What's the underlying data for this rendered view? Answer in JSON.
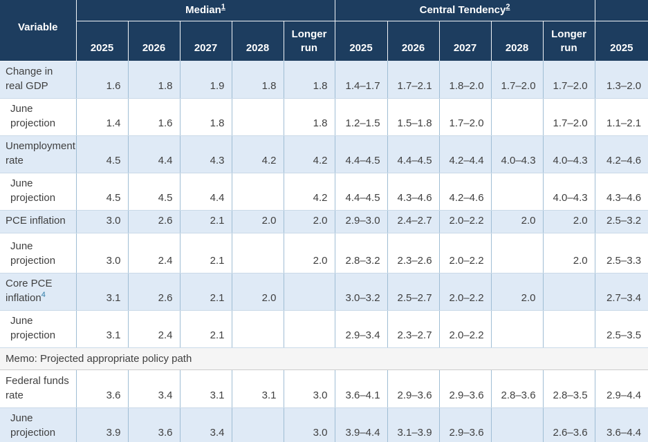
{
  "colors": {
    "header_bg": "#1d3d5f",
    "header_text": "#ffffff",
    "stripe_blue": "#dfeaf6",
    "memo_bg": "#f5f5f5",
    "body_text": "#3f3f3f",
    "footnote_link": "#2e7ca8"
  },
  "header": {
    "variable_label": "Variable",
    "median": {
      "label": "Median",
      "footnote": "1"
    },
    "central_tendency": {
      "label": "Central Tendency",
      "footnote": "2"
    },
    "range_label": "",
    "years": [
      "2025",
      "2026",
      "2027",
      "2028",
      "Longer run",
      "2025",
      "2026",
      "2027",
      "2028",
      "Longer run",
      "2025"
    ]
  },
  "rows": [
    {
      "label": "Change in real GDP",
      "sup": "",
      "indent": false,
      "values": [
        "1.6",
        "1.8",
        "1.9",
        "1.8",
        "1.8",
        "1.4–1.7",
        "1.7–2.1",
        "1.8–2.0",
        "1.7–2.0",
        "1.7–2.0",
        "1.3–2.0"
      ]
    },
    {
      "label": "June projection",
      "sup": "",
      "indent": true,
      "values": [
        "1.4",
        "1.6",
        "1.8",
        "",
        "1.8",
        "1.2–1.5",
        "1.5–1.8",
        "1.7–2.0",
        "",
        "1.7–2.0",
        "1.1–2.1"
      ]
    },
    {
      "label": "Unemployment rate",
      "sup": "",
      "indent": false,
      "values": [
        "4.5",
        "4.4",
        "4.3",
        "4.2",
        "4.2",
        "4.4–4.5",
        "4.4–4.5",
        "4.2–4.4",
        "4.0–4.3",
        "4.0–4.3",
        "4.2–4.6"
      ]
    },
    {
      "label": "June projection",
      "sup": "",
      "indent": true,
      "values": [
        "4.5",
        "4.5",
        "4.4",
        "",
        "4.2",
        "4.4–4.5",
        "4.3–4.6",
        "4.2–4.6",
        "",
        "4.0–4.3",
        "4.3–4.6"
      ]
    },
    {
      "label": "PCE inflation",
      "sup": "",
      "indent": false,
      "values": [
        "3.0",
        "2.6",
        "2.1",
        "2.0",
        "2.0",
        "2.9–3.0",
        "2.4–2.7",
        "2.0–2.2",
        "2.0",
        "2.0",
        "2.5–3.2"
      ]
    },
    {
      "label": "June projection",
      "sup": "",
      "indent": true,
      "values": [
        "3.0",
        "2.4",
        "2.1",
        "",
        "2.0",
        "2.8–3.2",
        "2.3–2.6",
        "2.0–2.2",
        "",
        "2.0",
        "2.5–3.3"
      ]
    },
    {
      "label": "Core PCE inflation",
      "sup": "4",
      "indent": false,
      "values": [
        "3.1",
        "2.6",
        "2.1",
        "2.0",
        "",
        "3.0–3.2",
        "2.5–2.7",
        "2.0–2.2",
        "2.0",
        "",
        "2.7–3.4"
      ]
    },
    {
      "label": "June projection",
      "sup": "",
      "indent": true,
      "values": [
        "3.1",
        "2.4",
        "2.1",
        "",
        "",
        "2.9–3.4",
        "2.3–2.7",
        "2.0–2.2",
        "",
        "",
        "2.5–3.5"
      ]
    },
    {
      "memo": true,
      "label": "Memo: Projected appropriate policy path"
    },
    {
      "label": "Federal funds rate",
      "sup": "",
      "indent": false,
      "values": [
        "3.6",
        "3.4",
        "3.1",
        "3.1",
        "3.0",
        "3.6–4.1",
        "2.9–3.6",
        "2.9–3.6",
        "2.8–3.6",
        "2.8–3.5",
        "2.9–4.4"
      ]
    },
    {
      "label": "June projection",
      "sup": "",
      "indent": true,
      "values": [
        "3.9",
        "3.6",
        "3.4",
        "",
        "3.0",
        "3.9–4.4",
        "3.1–3.9",
        "2.9–3.6",
        "",
        "2.6–3.6",
        "3.6–4.4"
      ]
    }
  ]
}
